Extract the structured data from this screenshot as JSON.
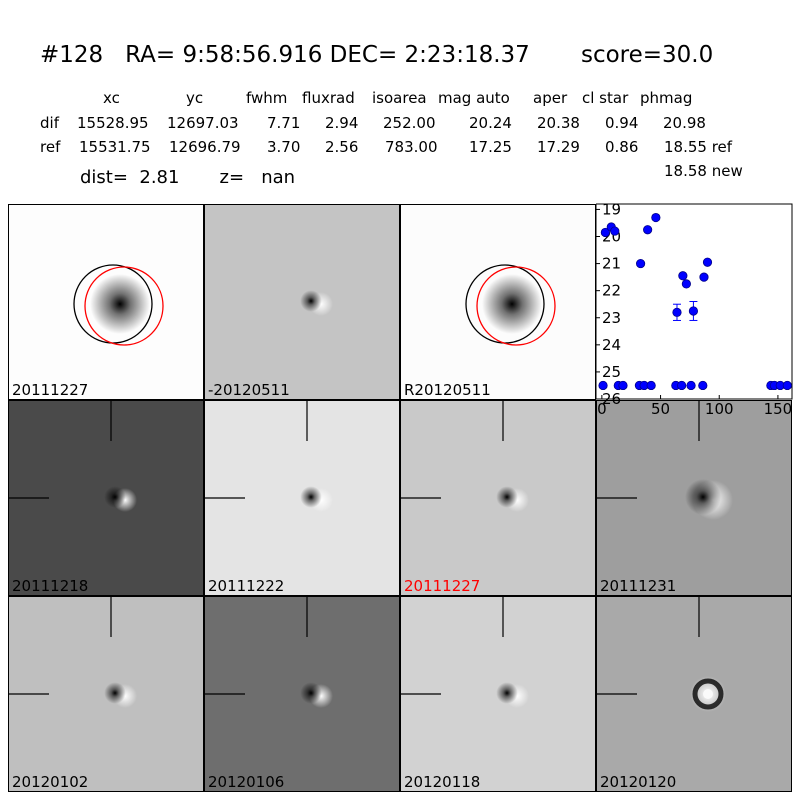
{
  "header": {
    "title": "#128   RA= 9:58:56.916 DEC= 2:23:18.37       score=30.0",
    "columns": [
      "xc",
      "yc",
      "fwhm",
      "fluxrad",
      "isoarea",
      "mag auto",
      "aper",
      "cl star",
      "phmag"
    ],
    "rows": [
      {
        "label": "dif",
        "values": [
          "15528.95",
          "12697.03",
          "7.71",
          "2.94",
          "252.00",
          "20.24",
          "20.38",
          "0.94",
          "20.98"
        ]
      },
      {
        "label": "ref",
        "values": [
          "15531.75",
          "12696.79",
          "3.70",
          "2.56",
          "783.00",
          "17.25",
          "17.29",
          "0.86",
          "18.55 ref"
        ]
      }
    ],
    "phmag_new": "18.58 new",
    "dist_line": "dist=  2.81       z=   nan"
  },
  "panels": [
    {
      "label": "20111227",
      "bg": "#fdfdfd",
      "blob": "star",
      "circles": true
    },
    {
      "label": "-20120511",
      "bg": "#c4c4c4",
      "blob": "dipole",
      "circles": false
    },
    {
      "label": "R20120511",
      "bg": "#fcfcfc",
      "blob": "star",
      "circles": true
    },
    {
      "label": "20111218",
      "bg": "#4a4a4a",
      "blob": "dipole-white",
      "crosshair": true
    },
    {
      "label": "20111222",
      "bg": "#e4e4e4",
      "blob": "dipole",
      "crosshair": true
    },
    {
      "label": "20111227",
      "bg": "#c9c9c9",
      "blob": "dipole",
      "crosshair": true,
      "label_color": "#ff0000"
    },
    {
      "label": "20111231",
      "bg": "#9e9e9e",
      "blob": "dipole-big",
      "crosshair": true
    },
    {
      "label": "20120102",
      "bg": "#bfbfbf",
      "blob": "dipole",
      "crosshair": true
    },
    {
      "label": "20120106",
      "bg": "#6e6e6e",
      "blob": "dipole-white",
      "crosshair": true
    },
    {
      "label": "20120118",
      "bg": "#d2d2d2",
      "blob": "dipole",
      "crosshair": true
    },
    {
      "label": "20120120",
      "bg": "#a9a9a9",
      "blob": "ring",
      "crosshair": true
    }
  ],
  "chart_data": {
    "type": "scatter",
    "title": "",
    "xlabel": "",
    "ylabel": "",
    "xlim": [
      -5,
      162
    ],
    "ylim": [
      26,
      18.8
    ],
    "y_inverted": true,
    "xticks": [
      0,
      50,
      100,
      150
    ],
    "yticks": [
      19,
      20,
      21,
      22,
      23,
      24,
      25,
      26
    ],
    "marker_color": "#0000ff",
    "points": [
      {
        "x": 1,
        "y": 25.5
      },
      {
        "x": 3,
        "y": 19.85
      },
      {
        "x": 8,
        "y": 19.65
      },
      {
        "x": 11,
        "y": 19.8
      },
      {
        "x": 14,
        "y": 25.5
      },
      {
        "x": 18,
        "y": 25.5
      },
      {
        "x": 32,
        "y": 25.5
      },
      {
        "x": 33,
        "y": 21.0
      },
      {
        "x": 36,
        "y": 25.5
      },
      {
        "x": 39,
        "y": 19.75
      },
      {
        "x": 42,
        "y": 25.5
      },
      {
        "x": 46,
        "y": 19.3
      },
      {
        "x": 63,
        "y": 25.5
      },
      {
        "x": 64,
        "y": 22.8,
        "err": 0.3
      },
      {
        "x": 68,
        "y": 25.5
      },
      {
        "x": 69,
        "y": 21.45
      },
      {
        "x": 72,
        "y": 21.75
      },
      {
        "x": 76,
        "y": 25.5
      },
      {
        "x": 78,
        "y": 22.75,
        "err": 0.35
      },
      {
        "x": 86,
        "y": 25.5
      },
      {
        "x": 87,
        "y": 21.5
      },
      {
        "x": 90,
        "y": 20.95
      },
      {
        "x": 144,
        "y": 25.5
      },
      {
        "x": 147,
        "y": 25.5
      },
      {
        "x": 152,
        "y": 25.5
      },
      {
        "x": 158,
        "y": 25.5
      }
    ]
  }
}
